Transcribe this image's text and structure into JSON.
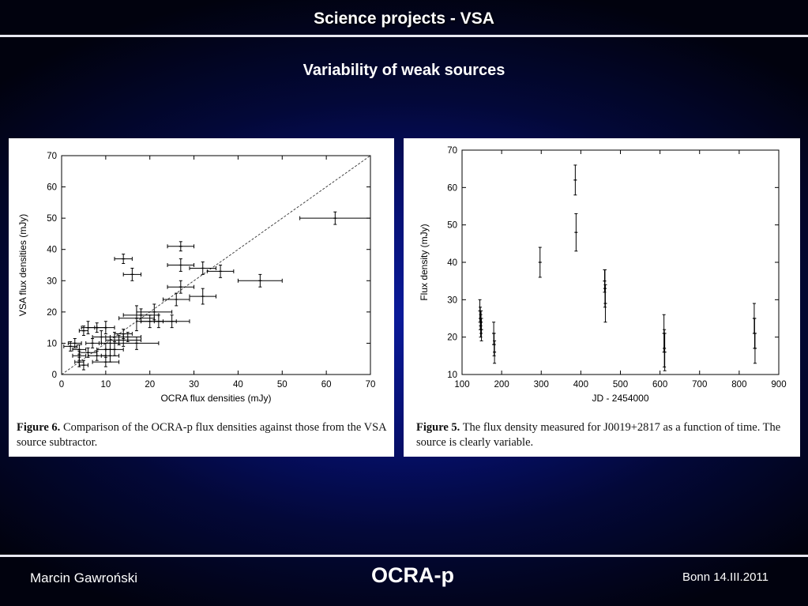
{
  "header": {
    "title": "Science projects - VSA"
  },
  "subtitle": "Variability of weak sources",
  "figures": [
    {
      "caption_label": "Figure 6.",
      "caption_text": "Comparison of the OCRA-p flux densities against those from the VSA source subtractor."
    },
    {
      "caption_label": "Figure 5.",
      "caption_text": "The flux density measured for J0019+2817 as a function of time. The source is clearly variable."
    }
  ],
  "chart_data": [
    {
      "type": "scatter",
      "xlabel": "OCRA flux densities (mJy)",
      "ylabel": "VSA flux densities (mJy)",
      "xlim": [
        0,
        70
      ],
      "ylim": [
        0,
        70
      ],
      "xticks": [
        "0",
        "10",
        "20",
        "30",
        "40",
        "50",
        "60",
        "70"
      ],
      "yticks": [
        "0",
        "10",
        "20",
        "30",
        "40",
        "50",
        "60",
        "70"
      ],
      "reference_line": "y = x (dashed)",
      "points": [
        {
          "x": 2,
          "y": 9,
          "xerr": 1.5,
          "yerr": 1.5
        },
        {
          "x": 3,
          "y": 10,
          "xerr": 1.5,
          "yerr": 1.5
        },
        {
          "x": 4,
          "y": 8,
          "xerr": 1.5,
          "yerr": 1.5
        },
        {
          "x": 4,
          "y": 4,
          "xerr": 1,
          "yerr": 1.5
        },
        {
          "x": 4,
          "y": 6,
          "xerr": 1.5,
          "yerr": 1.5
        },
        {
          "x": 5,
          "y": 3,
          "xerr": 1,
          "yerr": 1.5
        },
        {
          "x": 5,
          "y": 14,
          "xerr": 1,
          "yerr": 1.5
        },
        {
          "x": 6,
          "y": 15,
          "xerr": 1.5,
          "yerr": 2
        },
        {
          "x": 6,
          "y": 7,
          "xerr": 2,
          "yerr": 1.5
        },
        {
          "x": 7,
          "y": 10,
          "xerr": 1.5,
          "yerr": 1.5
        },
        {
          "x": 8,
          "y": 6,
          "xerr": 2,
          "yerr": 1.5
        },
        {
          "x": 8,
          "y": 15,
          "xerr": 2,
          "yerr": 1.5
        },
        {
          "x": 9,
          "y": 12,
          "xerr": 2,
          "yerr": 2
        },
        {
          "x": 10,
          "y": 4,
          "xerr": 3,
          "yerr": 1.5
        },
        {
          "x": 10,
          "y": 8,
          "xerr": 2,
          "yerr": 2
        },
        {
          "x": 10,
          "y": 15,
          "xerr": 2,
          "yerr": 2
        },
        {
          "x": 11,
          "y": 6,
          "xerr": 2,
          "yerr": 2
        },
        {
          "x": 11,
          "y": 10,
          "xerr": 2,
          "yerr": 2
        },
        {
          "x": 12,
          "y": 8,
          "xerr": 2,
          "yerr": 2
        },
        {
          "x": 12,
          "y": 12,
          "xerr": 2,
          "yerr": 1.5
        },
        {
          "x": 13,
          "y": 11,
          "xerr": 2,
          "yerr": 1.5
        },
        {
          "x": 14,
          "y": 13,
          "xerr": 2,
          "yerr": 1.5
        },
        {
          "x": 14,
          "y": 11,
          "xerr": 4,
          "yerr": 2
        },
        {
          "x": 15,
          "y": 12,
          "xerr": 3,
          "yerr": 1.5
        },
        {
          "x": 17,
          "y": 10,
          "xerr": 5,
          "yerr": 2
        },
        {
          "x": 17,
          "y": 18,
          "xerr": 4,
          "yerr": 4
        },
        {
          "x": 14,
          "y": 37,
          "xerr": 2,
          "yerr": 1.5
        },
        {
          "x": 16,
          "y": 32,
          "xerr": 2,
          "yerr": 2
        },
        {
          "x": 18,
          "y": 19,
          "xerr": 4,
          "yerr": 2
        },
        {
          "x": 20,
          "y": 17,
          "xerr": 3,
          "yerr": 2
        },
        {
          "x": 21,
          "y": 20,
          "xerr": 4,
          "yerr": 2.5
        },
        {
          "x": 22,
          "y": 17,
          "xerr": 4,
          "yerr": 2
        },
        {
          "x": 25,
          "y": 17,
          "xerr": 4,
          "yerr": 2
        },
        {
          "x": 26,
          "y": 24,
          "xerr": 3,
          "yerr": 2
        },
        {
          "x": 27,
          "y": 28,
          "xerr": 3,
          "yerr": 2
        },
        {
          "x": 27,
          "y": 41,
          "xerr": 3,
          "yerr": 1.5
        },
        {
          "x": 27,
          "y": 35,
          "xerr": 3,
          "yerr": 2
        },
        {
          "x": 32,
          "y": 34,
          "xerr": 3,
          "yerr": 2
        },
        {
          "x": 32,
          "y": 25,
          "xerr": 3,
          "yerr": 2.5
        },
        {
          "x": 36,
          "y": 33,
          "xerr": 3,
          "yerr": 2
        },
        {
          "x": 45,
          "y": 30,
          "xerr": 5,
          "yerr": 2
        },
        {
          "x": 62,
          "y": 50,
          "xerr": 8,
          "yerr": 2
        }
      ]
    },
    {
      "type": "scatter",
      "xlabel": "JD - 2454000",
      "ylabel": "Flux density (mJy)",
      "xlim": [
        100,
        900
      ],
      "ylim": [
        10,
        70
      ],
      "xticks": [
        "100",
        "200",
        "300",
        "400",
        "500",
        "600",
        "700",
        "800",
        "900"
      ],
      "yticks": [
        "10",
        "20",
        "30",
        "40",
        "50",
        "60",
        "70"
      ],
      "points": [
        {
          "x": 145,
          "y": 27,
          "yerr": 3
        },
        {
          "x": 146,
          "y": 25,
          "yerr": 3
        },
        {
          "x": 147,
          "y": 23,
          "yerr": 3
        },
        {
          "x": 148,
          "y": 24,
          "yerr": 3
        },
        {
          "x": 149,
          "y": 22,
          "yerr": 3
        },
        {
          "x": 180,
          "y": 21,
          "yerr": 3
        },
        {
          "x": 181,
          "y": 18,
          "yerr": 3
        },
        {
          "x": 182,
          "y": 16,
          "yerr": 3
        },
        {
          "x": 297,
          "y": 40,
          "yerr": 4
        },
        {
          "x": 386,
          "y": 62,
          "yerr": 4
        },
        {
          "x": 388,
          "y": 48,
          "yerr": 5
        },
        {
          "x": 460,
          "y": 35,
          "yerr": 3
        },
        {
          "x": 461,
          "y": 33,
          "yerr": 5
        },
        {
          "x": 462,
          "y": 29,
          "yerr": 5
        },
        {
          "x": 610,
          "y": 21,
          "yerr": 5
        },
        {
          "x": 611,
          "y": 17,
          "yerr": 5
        },
        {
          "x": 612,
          "y": 16,
          "yerr": 5
        },
        {
          "x": 838,
          "y": 25,
          "yerr": 4
        },
        {
          "x": 839,
          "y": 21,
          "yerr": 4
        },
        {
          "x": 840,
          "y": 17,
          "yerr": 4
        }
      ]
    }
  ],
  "footer": {
    "author": "Marcin Gawroński",
    "project": "OCRA-p",
    "location_date": "Bonn 14.III.2011"
  }
}
